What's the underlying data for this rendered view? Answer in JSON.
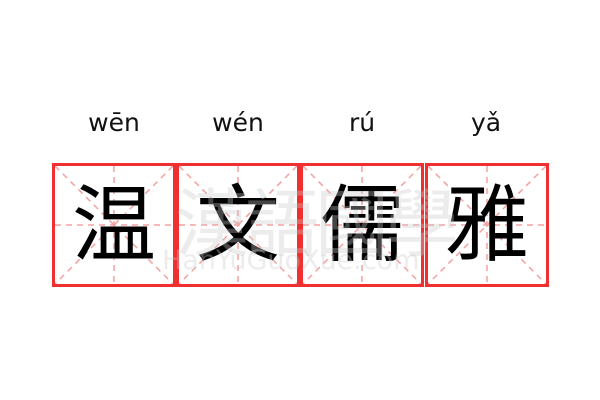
{
  "pinyin": [
    "wēn",
    "wén",
    "rú",
    "yǎ"
  ],
  "characters": [
    "温",
    "文",
    "儒",
    "雅"
  ],
  "watermark": {
    "chinese": "漢語國學",
    "latin": "HanYuGuoXue.com"
  },
  "colors": {
    "border": "#f03030",
    "guide": "#f5a0a0",
    "text": "#000000"
  }
}
